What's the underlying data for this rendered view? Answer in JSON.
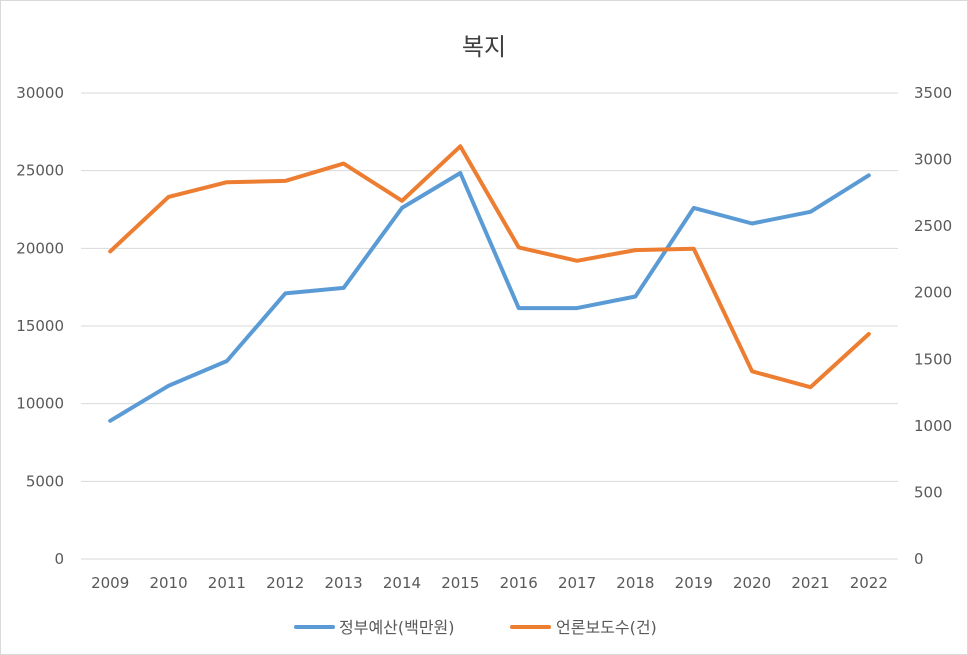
{
  "chart_data": {
    "type": "line",
    "title": "복지",
    "categories": [
      "2009",
      "2010",
      "2011",
      "2012",
      "2013",
      "2014",
      "2015",
      "2016",
      "2017",
      "2018",
      "2019",
      "2020",
      "2021",
      "2022"
    ],
    "series": [
      {
        "name": "정부예산(백만원)",
        "axis": "left",
        "color": "#5B9BD5",
        "values": [
          8900,
          11150,
          12750,
          17100,
          17450,
          22600,
          24850,
          16150,
          16150,
          16900,
          22600,
          21600,
          22350,
          24700
        ]
      },
      {
        "name": "언론보도수(건)",
        "axis": "right",
        "color": "#ED7D31",
        "values": [
          2310,
          2720,
          2830,
          2840,
          2970,
          2690,
          3100,
          2340,
          2240,
          2320,
          2330,
          1410,
          1290,
          1690
        ]
      }
    ],
    "y_left": {
      "min": 0,
      "max": 30000,
      "ticks": [
        0,
        5000,
        10000,
        15000,
        20000,
        25000,
        30000
      ]
    },
    "y_right": {
      "min": 0,
      "max": 3500,
      "ticks": [
        0,
        500,
        1000,
        1500,
        2000,
        2500,
        3000,
        3500
      ]
    },
    "grid": true,
    "legend_position": "bottom"
  }
}
